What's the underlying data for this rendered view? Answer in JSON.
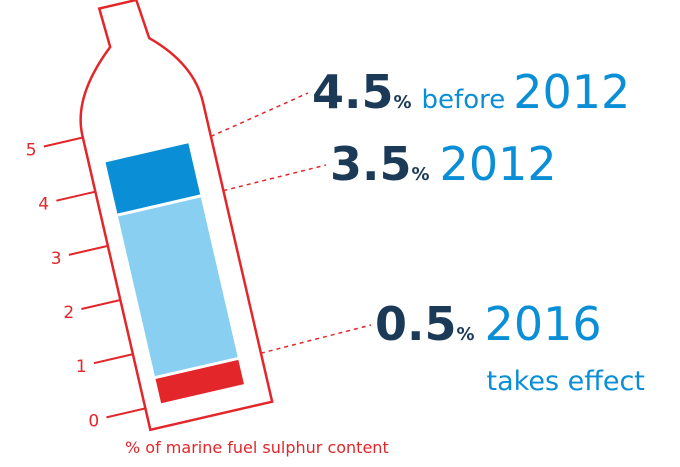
{
  "chart_data": {
    "type": "bar",
    "x_label": "% of marine fuel sulphur content",
    "categories": [
      "2012",
      "2012",
      "2016"
    ],
    "values": [
      4.5,
      3.5,
      0.5
    ],
    "colors": [
      "#0a8fd6",
      "#88cff1",
      "#e3262a"
    ],
    "value_unit": "%",
    "annotations": [
      "before",
      "takes effect"
    ],
    "ylim": [
      0,
      5
    ],
    "yticks": [
      0,
      1,
      2,
      3,
      4,
      5
    ],
    "axis_color": "#e3262a",
    "label_color": "#1b3a57",
    "category_color": "#0a8fd6"
  }
}
